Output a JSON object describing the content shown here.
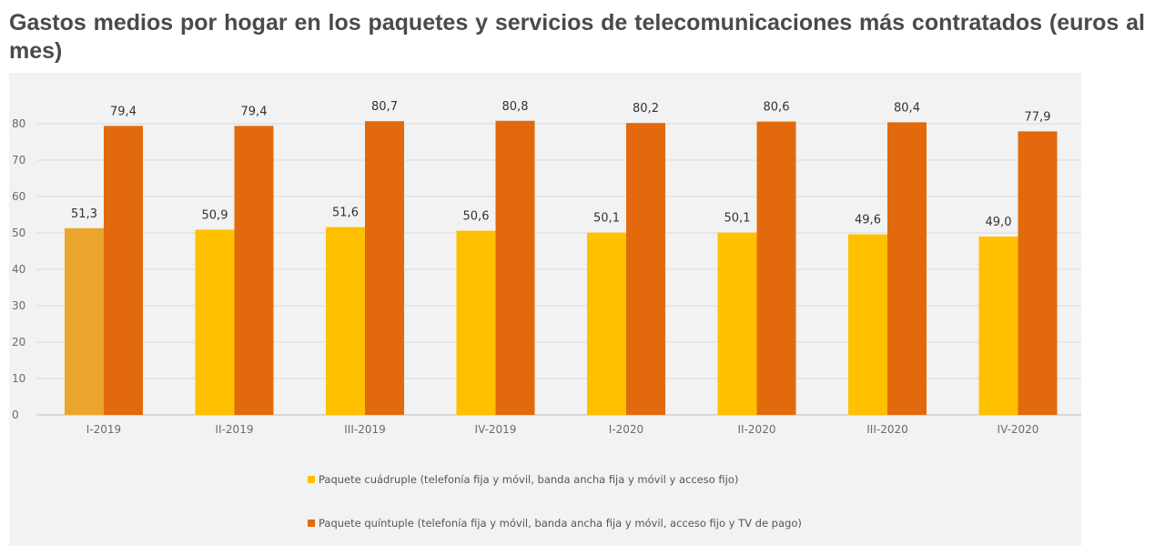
{
  "title": "Gastos medios por hogar en los paquetes y servicios de telecomunicaciones más contratados (euros al mes)",
  "colors": {
    "panel_bg": "#f2f2f2",
    "series_1": "#ffc000",
    "series_1_first_bar": "#eba52d",
    "series_2": "#e26a0c",
    "grid": "#d9d9d9"
  },
  "chart_data": {
    "type": "bar",
    "categories": [
      "I-2019",
      "II-2019",
      "III-2019",
      "IV-2019",
      "I-2020",
      "II-2020",
      "III-2020",
      "IV-2020"
    ],
    "series": [
      {
        "name": "Paquete cuádruple (telefonía fija y móvil, banda ancha fija y móvil y acceso fijo)",
        "values": [
          51.3,
          50.9,
          51.6,
          50.6,
          50.1,
          50.1,
          49.6,
          49.0
        ],
        "labels": [
          "51,3",
          "50,9",
          "51,6",
          "50,6",
          "50,1",
          "50,1",
          "49,6",
          "49,0"
        ]
      },
      {
        "name": "Paquete quíntuple (telefonía fija y móvil, banda ancha fija y móvil, acceso fijo y TV de pago)",
        "values": [
          79.4,
          79.4,
          80.7,
          80.8,
          80.2,
          80.6,
          80.4,
          77.9
        ],
        "labels": [
          "79,4",
          "79,4",
          "80,7",
          "80,8",
          "80,2",
          "80,6",
          "80,4",
          "77,9"
        ]
      }
    ],
    "ylim": [
      0,
      80
    ],
    "yticks": [
      0,
      10,
      20,
      30,
      40,
      50,
      60,
      70,
      80
    ],
    "grid": true,
    "legend_position": "bottom"
  }
}
